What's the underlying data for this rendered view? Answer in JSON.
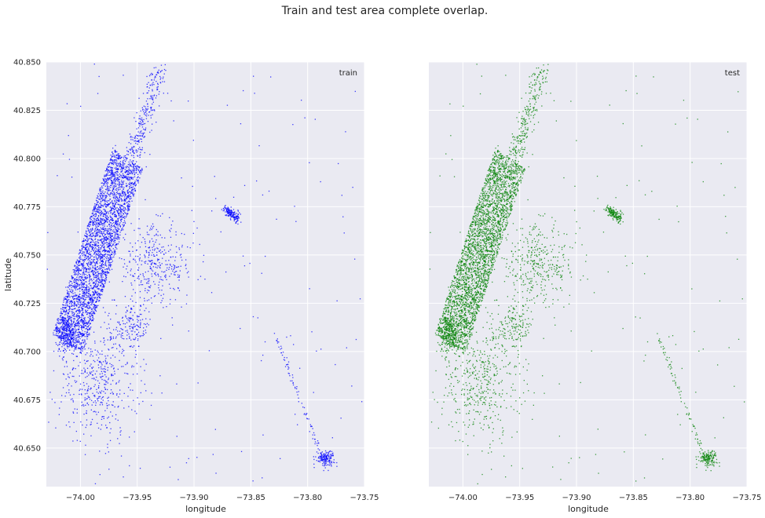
{
  "figure": {
    "suptitle": "Train and test area complete overlap."
  },
  "chart_data": [
    {
      "type": "scatter",
      "xlabel": "longitude",
      "ylabel": "latitude",
      "xlim": [
        -74.03,
        -73.75
      ],
      "ylim": [
        40.63,
        40.85
      ],
      "xticks": [
        -74.0,
        -73.95,
        -73.9,
        -73.85,
        -73.8,
        -73.75
      ],
      "xtick_labels": [
        "−74.00",
        "−73.95",
        "−73.90",
        "−73.85",
        "−73.80",
        "−73.75"
      ],
      "yticks": [
        40.65,
        40.675,
        40.7,
        40.725,
        40.75,
        40.775,
        40.8,
        40.825,
        40.85
      ],
      "ytick_labels": [
        "40.650",
        "40.675",
        "40.700",
        "40.725",
        "40.750",
        "40.775",
        "40.800",
        "40.825",
        "40.850"
      ],
      "grid": true,
      "legend_position": "top-right",
      "series": [
        {
          "name": "train",
          "color": "#0000ff"
        }
      ]
    },
    {
      "type": "scatter",
      "xlabel": "longitude",
      "ylabel": "",
      "xlim": [
        -74.03,
        -73.75
      ],
      "ylim": [
        40.63,
        40.85
      ],
      "xticks": [
        -74.0,
        -73.95,
        -73.9,
        -73.85,
        -73.8,
        -73.75
      ],
      "xtick_labels": [
        "−74.00",
        "−73.95",
        "−73.90",
        "−73.85",
        "−73.80",
        "−73.75"
      ],
      "yticks": [
        40.65,
        40.675,
        40.7,
        40.725,
        40.75,
        40.775,
        40.8,
        40.825,
        40.85
      ],
      "ytick_labels": [
        "",
        "",
        "",
        "",
        "",
        "",
        "",
        "",
        ""
      ],
      "grid": true,
      "legend_position": "top-right",
      "series": [
        {
          "name": "test",
          "color": "#008000"
        }
      ]
    }
  ]
}
